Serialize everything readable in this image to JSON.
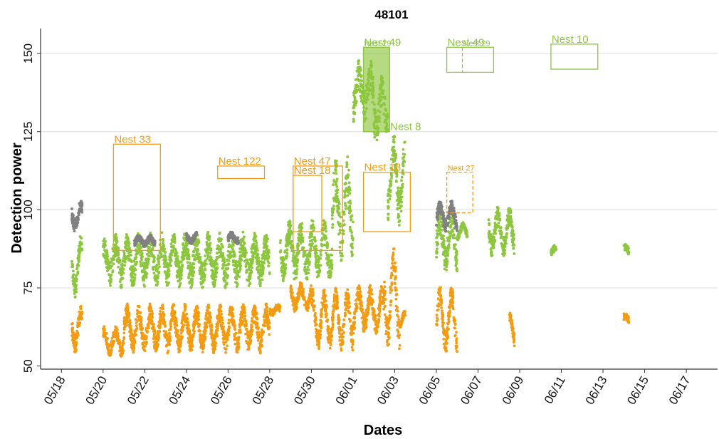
{
  "chart_data": {
    "type": "scatter",
    "title": "48101",
    "xlabel": "Dates",
    "ylabel": "Detection power",
    "xlim": [
      "05/17 00:00",
      "06/18 12:00"
    ],
    "ylim": [
      49,
      158
    ],
    "y_ticks": [
      50,
      75,
      100,
      125,
      150
    ],
    "x_ticks": [
      "05/18",
      "05/20",
      "05/22",
      "05/24",
      "05/26",
      "05/28",
      "05/30",
      "06/01",
      "06/03",
      "06/05",
      "06/07",
      "06/09",
      "06/11",
      "06/13",
      "06/15",
      "06/17"
    ],
    "grid": {
      "horizontal": true,
      "vertical": false
    },
    "colors": {
      "green": "#8dc63f",
      "orange": "#f39c12",
      "grey": "#808080"
    },
    "series": [
      {
        "color": "green",
        "segments": [
          {
            "from": "05/18 12:00",
            "to": "05/19 00:00",
            "base": 82,
            "spread": 7,
            "noise": 3
          },
          {
            "from": "05/20 00:00",
            "to": "05/28 00:00",
            "base": 84,
            "spread": 5,
            "noise": 4
          },
          {
            "from": "05/28 12:00",
            "to": "05/31 00:00",
            "base": 87,
            "spread": 6,
            "noise": 4
          },
          {
            "from": "05/31 00:00",
            "to": "06/01 00:00",
            "base": 100,
            "spread": 10,
            "noise": 7
          },
          {
            "from": "06/01 00:00",
            "to": "06/02 00:00",
            "base": 138,
            "spread": 5,
            "noise": 5
          },
          {
            "from": "06/02 00:00",
            "to": "06/02 16:00",
            "base": 132,
            "spread": 6,
            "noise": 5
          },
          {
            "from": "06/02 16:00",
            "to": "06/03 12:00",
            "base": 110,
            "spread": 10,
            "noise": 5
          },
          {
            "from": "06/05 00:00",
            "to": "06/06 00:00",
            "base": 90,
            "spread": 6,
            "noise": 4
          },
          {
            "from": "06/06 00:00",
            "to": "06/06 12:00",
            "base": 93,
            "spread": 2,
            "noise": 1
          },
          {
            "from": "06/07 12:00",
            "to": "06/08 18:00",
            "base": 93,
            "spread": 5,
            "noise": 3
          },
          {
            "from": "06/10 12:00",
            "to": "06/10 18:00",
            "base": 87,
            "spread": 1,
            "noise": 1
          },
          {
            "from": "06/14 00:00",
            "to": "06/14 06:00",
            "base": 87,
            "spread": 1,
            "noise": 1
          }
        ]
      },
      {
        "color": "orange",
        "segments": [
          {
            "from": "05/18 12:00",
            "to": "05/19 00:00",
            "base": 62,
            "spread": 5,
            "noise": 3
          },
          {
            "from": "05/20 00:00",
            "to": "05/21 00:00",
            "base": 58,
            "spread": 3,
            "noise": 2
          },
          {
            "from": "05/21 00:00",
            "to": "05/28 00:00",
            "base": 62,
            "spread": 5,
            "noise": 3
          },
          {
            "from": "05/28 00:00",
            "to": "05/28 12:00",
            "base": 68,
            "spread": 1,
            "noise": 1
          },
          {
            "from": "05/29 00:00",
            "to": "05/30 00:00",
            "base": 72,
            "spread": 3,
            "noise": 2
          },
          {
            "from": "05/30 00:00",
            "to": "06/01 00:00",
            "base": 65,
            "spread": 7,
            "noise": 3
          },
          {
            "from": "06/01 00:00",
            "to": "06/02 12:00",
            "base": 68,
            "spread": 5,
            "noise": 3
          },
          {
            "from": "06/02 12:00",
            "to": "06/03 06:00",
            "base": 72,
            "spread": 12,
            "noise": 5
          },
          {
            "from": "06/03 06:00",
            "to": "06/03 12:00",
            "base": 65,
            "spread": 2,
            "noise": 1
          },
          {
            "from": "06/05 00:00",
            "to": "06/06 00:00",
            "base": 65,
            "spread": 8,
            "noise": 3
          },
          {
            "from": "06/08 12:00",
            "to": "06/08 18:00",
            "base": 62,
            "spread": 4,
            "noise": 2
          },
          {
            "from": "06/14 00:00",
            "to": "06/14 06:00",
            "base": 65,
            "spread": 1,
            "noise": 1
          }
        ]
      },
      {
        "color": "grey",
        "segments": [
          {
            "from": "05/18 12:00",
            "to": "05/19 00:00",
            "base": 98,
            "spread": 3,
            "noise": 2
          },
          {
            "from": "05/21 12:00",
            "to": "05/22 12:00",
            "base": 90,
            "spread": 1,
            "noise": 1
          },
          {
            "from": "05/24 00:00",
            "to": "05/24 12:00",
            "base": 91,
            "spread": 1,
            "noise": 1
          },
          {
            "from": "05/26 00:00",
            "to": "05/26 12:00",
            "base": 91,
            "spread": 1,
            "noise": 1
          },
          {
            "from": "06/05 00:00",
            "to": "06/06 00:00",
            "base": 98,
            "spread": 3,
            "noise": 2
          }
        ]
      }
    ],
    "boxes": [
      {
        "label": "Nest 33",
        "color": "orange",
        "x0": "05/20 12:00",
        "x1": "05/22 18:00",
        "y0": 87,
        "y1": 121,
        "fill": false,
        "dashed": false,
        "font": 15
      },
      {
        "label": "Nest 122",
        "color": "orange",
        "x0": "05/25 12:00",
        "x1": "05/27 18:00",
        "y0": 110,
        "y1": 114,
        "fill": false,
        "dashed": false,
        "font": 15
      },
      {
        "label": "Nest 47",
        "color": "orange",
        "x0": "05/29 03:00",
        "x1": "05/31 12:00",
        "y0": 87,
        "y1": 114,
        "fill": false,
        "dashed": false,
        "font": 15
      },
      {
        "label": "Nest 18",
        "color": "orange",
        "x0": "05/29 03:00",
        "x1": "05/30 12:00",
        "y0": 93,
        "y1": 111,
        "fill": false,
        "dashed": false,
        "font": 15
      },
      {
        "label": "Nest 18",
        "color": "orange",
        "x0": "06/01 12:00",
        "x1": "06/03 18:00",
        "y0": 93,
        "y1": 112,
        "fill": false,
        "dashed": false,
        "font": 15
      },
      {
        "label": "Nest 27",
        "color": "orange",
        "x0": "06/05 12:00",
        "x1": "06/06 18:00",
        "y0": 99,
        "y1": 112,
        "fill": false,
        "dashed": true,
        "font": 11
      },
      {
        "label": "Nest 29",
        "color": "green",
        "x0": "06/01 12:00",
        "x1": "06/02 18:00",
        "y0": 125,
        "y1": 152,
        "fill": true,
        "dashed": false,
        "font": 11
      },
      {
        "label": "Nest 49",
        "color": "green",
        "x0": "06/01 12:00",
        "x1": "06/02 18:00",
        "y0": 125,
        "y1": 152,
        "fill": false,
        "dashed": false,
        "font": 15
      },
      {
        "label": "Nest 8",
        "color": "green",
        "x0": "06/02 18:00",
        "x1": "06/02 18:00",
        "y0": 125,
        "y1": 125,
        "fill": false,
        "dashed": false,
        "font": 15
      },
      {
        "label": "Nest 49",
        "color": "green",
        "x0": "06/05 12:00",
        "x1": "06/07 18:00",
        "y0": 144,
        "y1": 152,
        "fill": false,
        "dashed": false,
        "font": 15
      },
      {
        "label": "Nest 29",
        "color": "green",
        "x0": "06/06 06:00",
        "x1": "06/06 06:00",
        "y0": 144,
        "y1": 152,
        "fill": false,
        "dashed": true,
        "font": 11
      },
      {
        "label": "Nest 10",
        "color": "green",
        "x0": "06/10 12:00",
        "x1": "06/12 18:00",
        "y0": 145,
        "y1": 153,
        "fill": false,
        "dashed": false,
        "font": 15
      }
    ]
  }
}
